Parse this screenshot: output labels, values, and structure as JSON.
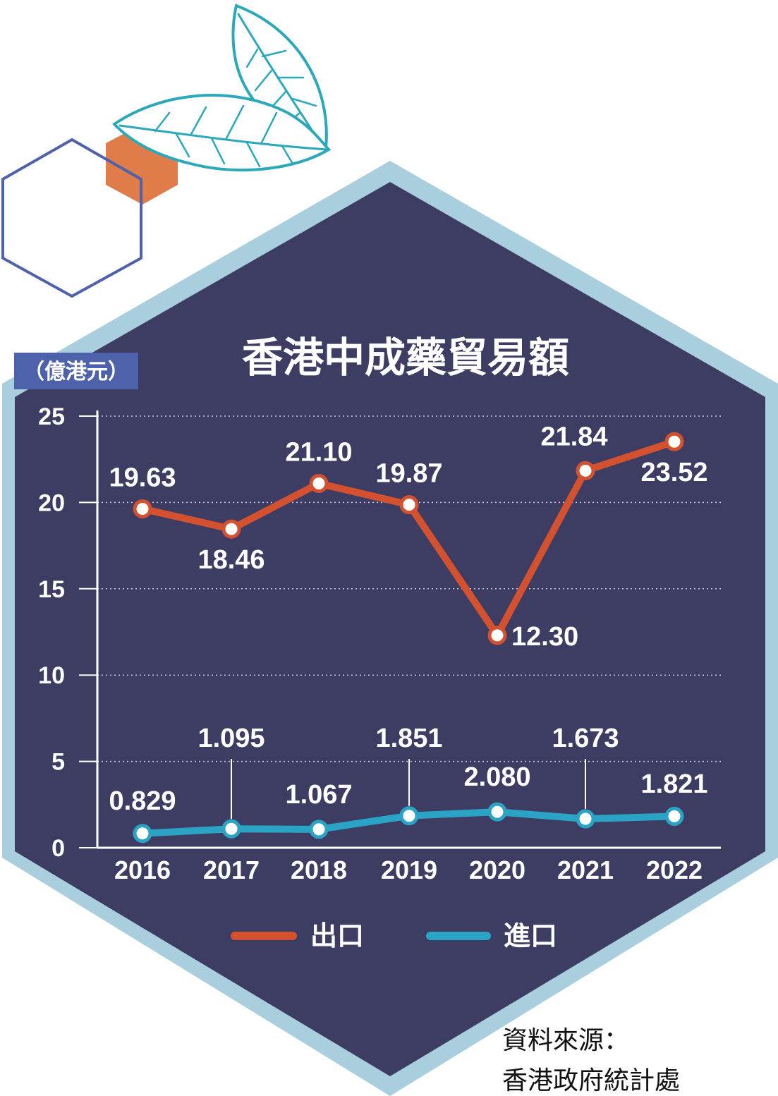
{
  "title": "香港中成藥貿易額",
  "unit": "（億港元）",
  "legend": {
    "export_label": "出口",
    "import_label": "進口"
  },
  "source": {
    "line1": "資料來源：",
    "line2": "香港政府統計處"
  },
  "colors": {
    "panel": "#3d3d63",
    "border": "#a9cedd",
    "export": "#d4512f",
    "import": "#2aa3c4",
    "accent_orange": "#e07b4a",
    "hex_outline": "#4d62aa",
    "leaf": "#2ba8ba"
  },
  "icons": [
    "leaf-icon",
    "hexagon-outline-icon",
    "hexagon-filled-icon"
  ],
  "chart_data": {
    "type": "line",
    "title": "香港中成藥貿易額",
    "ylabel": "（億港元）",
    "xlabel": "",
    "categories": [
      "2016",
      "2017",
      "2018",
      "2019",
      "2020",
      "2021",
      "2022"
    ],
    "yticks": [
      "0",
      "5",
      "10",
      "15",
      "20",
      "25"
    ],
    "ylim": [
      0,
      25
    ],
    "grid": "horizontal dotted",
    "legend_position": "bottom",
    "series": [
      {
        "name": "出口",
        "values": [
          19.63,
          18.46,
          21.1,
          19.87,
          12.3,
          21.84,
          23.52
        ],
        "labels": [
          "19.63",
          "18.46",
          "21.10",
          "19.87",
          "12.30",
          "21.84",
          "23.52"
        ]
      },
      {
        "name": "進口",
        "values": [
          0.829,
          1.095,
          1.067,
          1.851,
          2.08,
          1.673,
          1.821
        ],
        "labels": [
          "0.829",
          "1.095",
          "1.067",
          "1.851",
          "2.080",
          "1.673",
          "1.821"
        ]
      }
    ]
  }
}
